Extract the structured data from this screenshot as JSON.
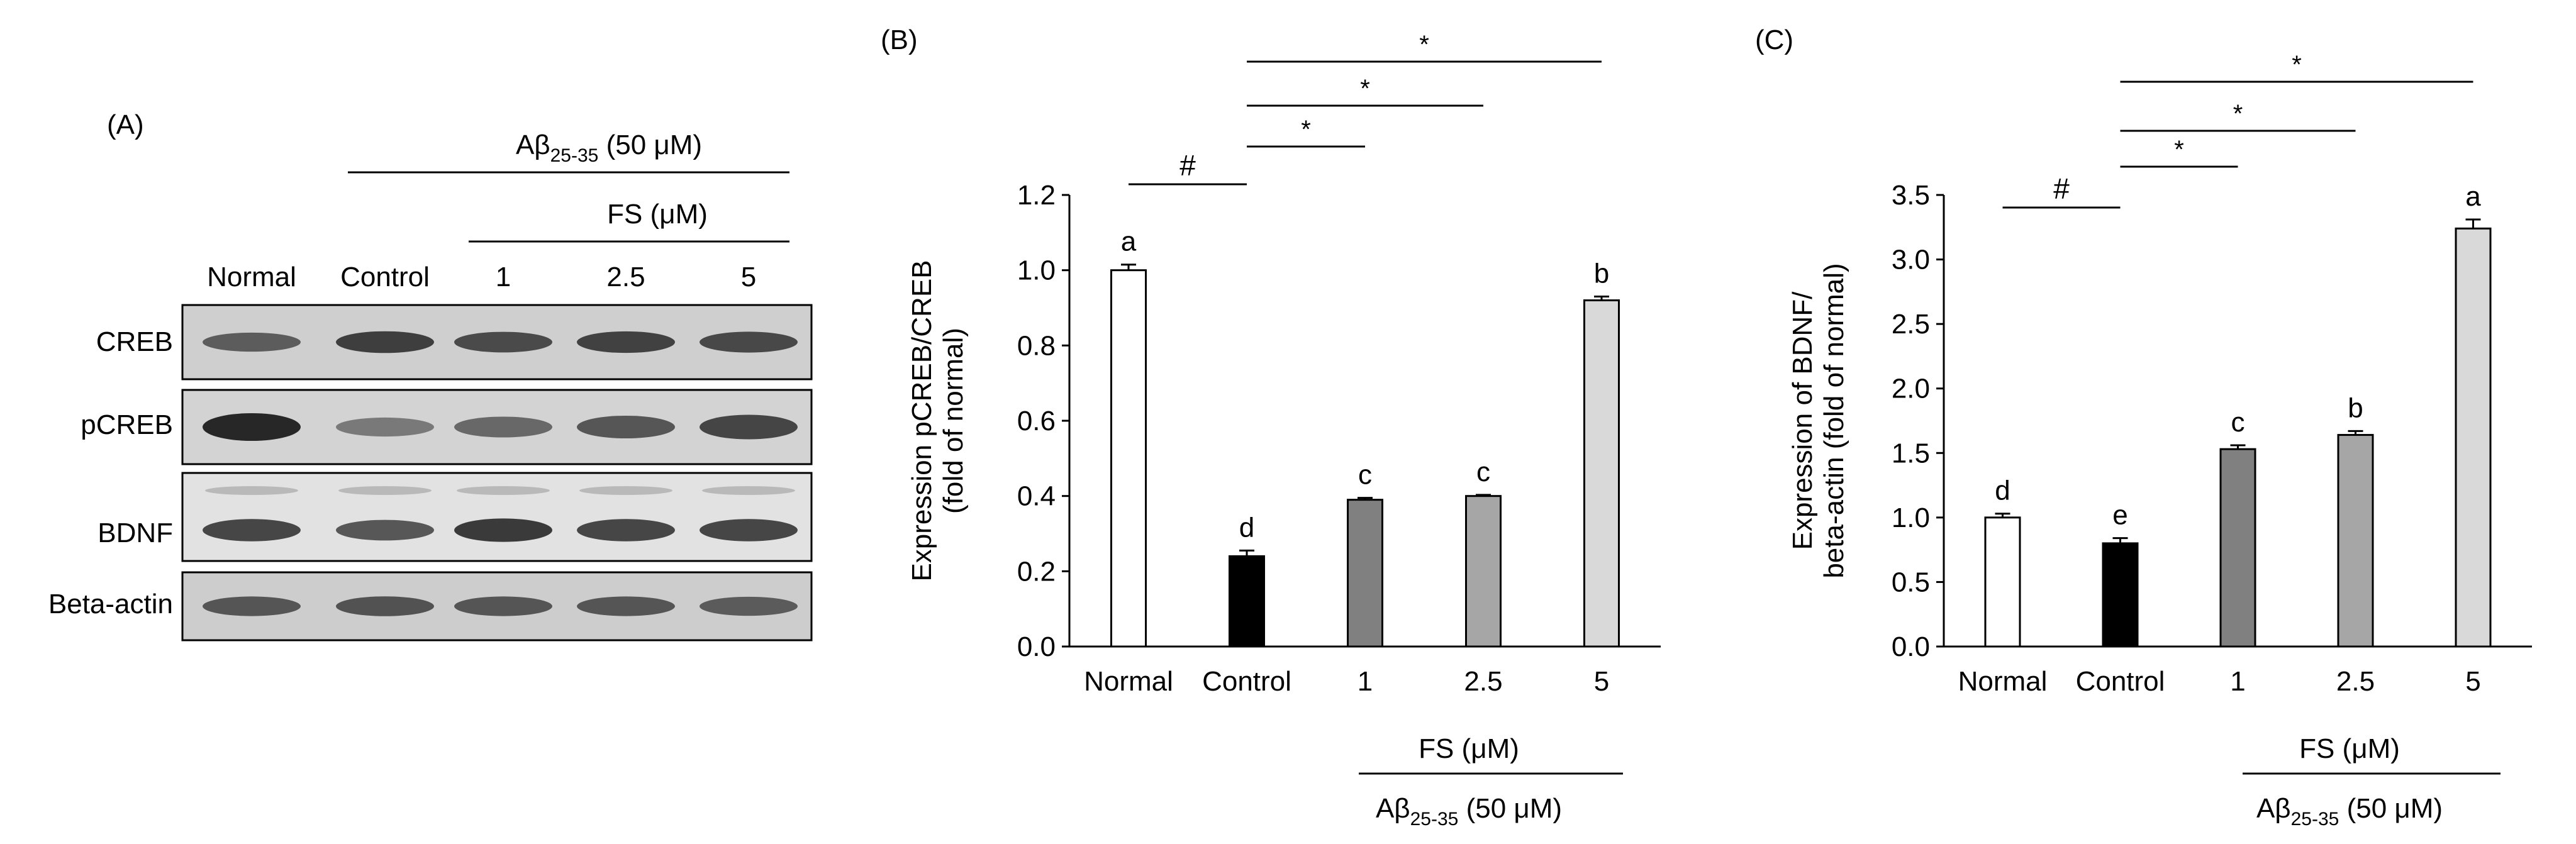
{
  "panels": {
    "a_label": "(A)",
    "b_label": "(B)",
    "c_label": "(C)"
  },
  "blot": {
    "header_top": {
      "main": "Aβ",
      "sub": "25-35",
      "rest": " (50 μM)"
    },
    "header_fs": "FS (μM)",
    "columns": [
      "Normal",
      "Control",
      "1",
      "2.5",
      "5"
    ],
    "rows": [
      "CREB",
      "pCREB",
      "BDNF",
      "Beta-actin"
    ],
    "band_intensity": {
      "CREB": [
        0.55,
        0.8,
        0.7,
        0.78,
        0.72
      ],
      "pCREB": [
        1.0,
        0.3,
        0.45,
        0.6,
        0.75
      ],
      "BDNF": [
        0.75,
        0.6,
        0.85,
        0.75,
        0.75
      ],
      "Beta-actin": [
        0.6,
        0.62,
        0.6,
        0.6,
        0.55
      ]
    }
  },
  "group_labels": {
    "fs": "FS (μM)",
    "abeta": {
      "main": "Aβ",
      "sub": "25-35",
      "rest": " (50 μM)"
    }
  },
  "chart_data": [
    {
      "type": "bar",
      "panel": "(B)",
      "categories": [
        "Normal",
        "Control",
        "1",
        "2.5",
        "5"
      ],
      "values": [
        1.0,
        0.24,
        0.39,
        0.4,
        0.92
      ],
      "errors": [
        0.015,
        0.015,
        0.005,
        0.003,
        0.01
      ],
      "letters": [
        "a",
        "d",
        "c",
        "c",
        "b"
      ],
      "bar_colors": [
        "#ffffff",
        "#000000",
        "#808080",
        "#a6a6a6",
        "#d9d9d9"
      ],
      "ylabel_lines": [
        "Expression pCREB/CREB",
        "(fold of normal)"
      ],
      "ylim": [
        0,
        1.2
      ],
      "yticks": [
        "0.0",
        "0.2",
        "0.4",
        "0.6",
        "0.8",
        "1.0",
        "1.2"
      ],
      "ytick_values": [
        0,
        0.2,
        0.4,
        0.6,
        0.8,
        1.0,
        1.2
      ],
      "grid": false,
      "significance": [
        {
          "from": 0,
          "to": 1,
          "symbol": "#"
        },
        {
          "from": 1,
          "to": 2,
          "symbol": "*"
        },
        {
          "from": 1,
          "to": 3,
          "symbol": "*"
        },
        {
          "from": 1,
          "to": 4,
          "symbol": "*"
        }
      ]
    },
    {
      "type": "bar",
      "panel": "(C)",
      "categories": [
        "Normal",
        "Control",
        "1",
        "2.5",
        "5"
      ],
      "values": [
        1.0,
        0.8,
        1.53,
        1.64,
        3.24
      ],
      "errors": [
        0.03,
        0.04,
        0.03,
        0.03,
        0.07
      ],
      "letters": [
        "d",
        "e",
        "c",
        "b",
        "a"
      ],
      "bar_colors": [
        "#ffffff",
        "#000000",
        "#808080",
        "#a6a6a6",
        "#d9d9d9"
      ],
      "ylabel_lines": [
        "Expression of BDNF/",
        "beta-actin (fold of normal)"
      ],
      "ylim": [
        0,
        3.5
      ],
      "yticks": [
        "0.0",
        "0.5",
        "1.0",
        "1.5",
        "2.0",
        "2.5",
        "3.0",
        "3.5"
      ],
      "ytick_values": [
        0,
        0.5,
        1.0,
        1.5,
        2.0,
        2.5,
        3.0,
        3.5
      ],
      "grid": false,
      "significance": [
        {
          "from": 0,
          "to": 1,
          "symbol": "#"
        },
        {
          "from": 1,
          "to": 2,
          "symbol": "*"
        },
        {
          "from": 1,
          "to": 3,
          "symbol": "*"
        },
        {
          "from": 1,
          "to": 4,
          "symbol": "*"
        }
      ]
    }
  ]
}
